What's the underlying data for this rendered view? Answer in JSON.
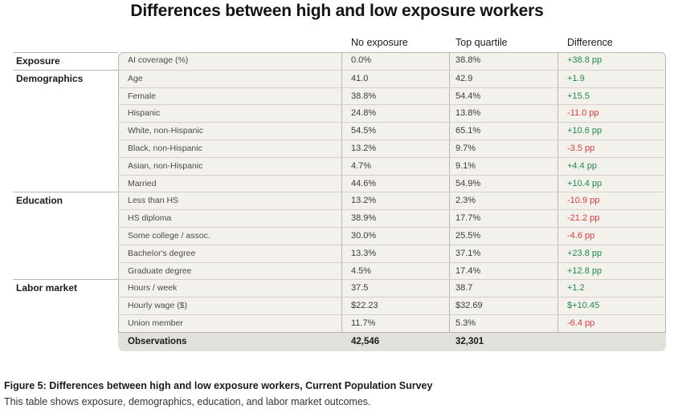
{
  "title": "Differences between high and low exposure workers",
  "columns": {
    "no_exposure": "No exposure",
    "top_quartile": "Top quartile",
    "difference": "Difference"
  },
  "sections": [
    {
      "label": "Exposure"
    },
    {
      "label": "Demographics"
    },
    {
      "label": "Education"
    },
    {
      "label": "Labor market"
    }
  ],
  "rows": [
    {
      "variable": "AI coverage (%)",
      "no_exposure": "0.0%",
      "top_quartile": "38.8%",
      "difference": "+38.8 pp",
      "sign": "pos"
    },
    {
      "variable": "Age",
      "no_exposure": "41.0",
      "top_quartile": "42.9",
      "difference": "+1.9",
      "sign": "pos"
    },
    {
      "variable": "Female",
      "no_exposure": "38.8%",
      "top_quartile": "54.4%",
      "difference": "+15.5",
      "sign": "pos"
    },
    {
      "variable": "Hispanic",
      "no_exposure": "24.8%",
      "top_quartile": "13.8%",
      "difference": "-11.0 pp",
      "sign": "neg"
    },
    {
      "variable": "White, non-Hispanic",
      "no_exposure": "54.5%",
      "top_quartile": "65.1%",
      "difference": "+10.6 pp",
      "sign": "pos"
    },
    {
      "variable": "Black, non-Hispanic",
      "no_exposure": "13.2%",
      "top_quartile": "9.7%",
      "difference": "-3.5 pp",
      "sign": "neg"
    },
    {
      "variable": "Asian, non-Hispanic",
      "no_exposure": "4.7%",
      "top_quartile": "9.1%",
      "difference": "+4.4 pp",
      "sign": "pos"
    },
    {
      "variable": "Married",
      "no_exposure": "44.6%",
      "top_quartile": "54.9%",
      "difference": "+10.4 pp",
      "sign": "pos"
    },
    {
      "variable": "Less than HS",
      "no_exposure": "13.2%",
      "top_quartile": "2.3%",
      "difference": "-10.9 pp",
      "sign": "neg"
    },
    {
      "variable": "HS diploma",
      "no_exposure": "38.9%",
      "top_quartile": "17.7%",
      "difference": "-21.2 pp",
      "sign": "neg"
    },
    {
      "variable": "Some college / assoc.",
      "no_exposure": "30.0%",
      "top_quartile": "25.5%",
      "difference": "-4.6 pp",
      "sign": "neg"
    },
    {
      "variable": "Bachelor's degree",
      "no_exposure": "13.3%",
      "top_quartile": "37.1%",
      "difference": "+23.8 pp",
      "sign": "pos"
    },
    {
      "variable": "Graduate degree",
      "no_exposure": "4.5%",
      "top_quartile": "17.4%",
      "difference": "+12.8 pp",
      "sign": "pos"
    },
    {
      "variable": "Hours / week",
      "no_exposure": "37.5",
      "top_quartile": "38.7",
      "difference": "+1.2",
      "sign": "pos"
    },
    {
      "variable": "Hourly wage ($)",
      "no_exposure": "$22.23",
      "top_quartile": "$32.69",
      "difference": "$+10.45",
      "sign": "pos"
    },
    {
      "variable": "Union member",
      "no_exposure": "11.7%",
      "top_quartile": "5.3%",
      "difference": "-6.4 pp",
      "sign": "neg"
    }
  ],
  "observations": {
    "label": "Observations",
    "no_exposure": "42,546",
    "top_quartile": "32,301",
    "difference": ""
  },
  "caption": "Figure 5: Differences between high and low exposure workers, Current Population Survey",
  "subcaption": "This table shows exposure, demographics, education, and labor market outcomes.",
  "colors": {
    "positive": "#1e8a4c",
    "negative": "#d93a3a",
    "panel": "#f2f1ec"
  }
}
